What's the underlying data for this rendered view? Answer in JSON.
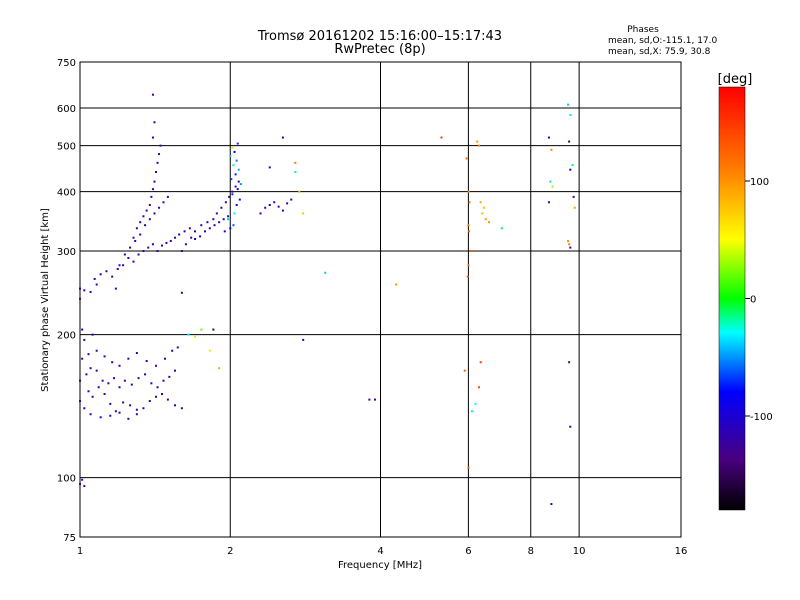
{
  "chart_data": {
    "type": "scatter",
    "title": "Tromsø 20161202 15:16:00–15:17:43",
    "subtitle": "RwPretec (8p)",
    "xlabel": "Frequency [MHz]",
    "ylabel": "Stationary phase Virtual Height [km]",
    "x_scale": "log",
    "y_scale": "log",
    "xlim": [
      1,
      16
    ],
    "ylim": [
      75,
      750
    ],
    "x_ticks": [
      1,
      2,
      4,
      6,
      8,
      10,
      16
    ],
    "x_tick_labels": [
      "1",
      "2",
      "4",
      "6",
      "8",
      "10",
      "16"
    ],
    "y_ticks": [
      75,
      100,
      200,
      300,
      400,
      500,
      600,
      750
    ],
    "y_tick_labels": [
      "75",
      "100",
      "200",
      "300",
      "400",
      "500",
      "600",
      "750"
    ],
    "grid": true,
    "stats": {
      "heading": "Phases",
      "line_o": "mean, sd,O:-115.1, 17.0",
      "line_x": "mean, sd,X: 75.9, 30.8"
    },
    "colorbar": {
      "label": "[deg]",
      "range": [
        -180,
        180
      ],
      "ticks": [
        100,
        0,
        -100
      ],
      "tick_labels": [
        "100",
        "0",
        "-100"
      ]
    },
    "points": [
      [
        1.0,
        97,
        -120
      ],
      [
        1.02,
        96,
        -110
      ],
      [
        1.01,
        99,
        -115
      ],
      [
        1.0,
        145,
        -120
      ],
      [
        1.02,
        140,
        -110
      ],
      [
        1.04,
        152,
        -125
      ],
      [
        1.06,
        148,
        -115
      ],
      [
        1.09,
        155,
        -112
      ],
      [
        1.12,
        150,
        -118
      ],
      [
        1.15,
        143,
        -120
      ],
      [
        1.18,
        138,
        -110
      ],
      [
        1.22,
        144,
        -114
      ],
      [
        1.26,
        142,
        -120
      ],
      [
        1.3,
        139,
        -116
      ],
      [
        1.34,
        140,
        -125
      ],
      [
        1.38,
        145,
        -118
      ],
      [
        1.42,
        148,
        -112
      ],
      [
        1.46,
        150,
        -120
      ],
      [
        1.5,
        146,
        -122
      ],
      [
        1.55,
        142,
        -115
      ],
      [
        1.6,
        140,
        -118
      ],
      [
        1.0,
        160,
        -120
      ],
      [
        1.03,
        165,
        -118
      ],
      [
        1.05,
        170,
        -112
      ],
      [
        1.08,
        168,
        -124
      ],
      [
        1.11,
        160,
        -116
      ],
      [
        1.14,
        158,
        -120
      ],
      [
        1.17,
        162,
        -110
      ],
      [
        1.2,
        155,
        -118
      ],
      [
        1.23,
        160,
        -125
      ],
      [
        1.27,
        157,
        -119
      ],
      [
        1.31,
        162,
        -114
      ],
      [
        1.35,
        165,
        -110
      ],
      [
        1.39,
        158,
        -121
      ],
      [
        1.43,
        155,
        -117
      ],
      [
        1.47,
        160,
        -115
      ],
      [
        1.51,
        163,
        -123
      ],
      [
        1.55,
        168,
        -116
      ],
      [
        1.01,
        178,
        -118
      ],
      [
        1.04,
        182,
        -112
      ],
      [
        1.08,
        185,
        -120
      ],
      [
        1.12,
        180,
        -114
      ],
      [
        1.16,
        175,
        -120
      ],
      [
        1.2,
        172,
        -116
      ],
      [
        1.25,
        178,
        -118
      ],
      [
        1.3,
        183,
        -122
      ],
      [
        1.36,
        176,
        -115
      ],
      [
        1.42,
        172,
        -118
      ],
      [
        1.48,
        178,
        -110
      ],
      [
        1.53,
        185,
        -116
      ],
      [
        1.57,
        188,
        -118
      ],
      [
        1.02,
        195,
        -110
      ],
      [
        1.06,
        200,
        -115
      ],
      [
        1.01,
        205,
        -118
      ],
      [
        1.05,
        136,
        -120
      ],
      [
        1.1,
        134,
        -116
      ],
      [
        1.15,
        135,
        -118
      ],
      [
        1.2,
        137,
        -112
      ],
      [
        1.25,
        133,
        -120
      ],
      [
        1.3,
        136,
        -118
      ],
      [
        1.0,
        250,
        -115
      ],
      [
        1.02,
        248,
        -120
      ],
      [
        1.05,
        246,
        -110
      ],
      [
        1.07,
        262,
        -114
      ],
      [
        1.1,
        268,
        -112
      ],
      [
        1.13,
        272,
        -118
      ],
      [
        1.16,
        265,
        -116
      ],
      [
        1.19,
        275,
        -120
      ],
      [
        1.22,
        280,
        -114
      ],
      [
        1.25,
        290,
        -116
      ],
      [
        1.28,
        285,
        -118
      ],
      [
        1.31,
        295,
        -112
      ],
      [
        1.34,
        300,
        -120
      ],
      [
        1.37,
        305,
        -118
      ],
      [
        1.4,
        310,
        -116
      ],
      [
        1.43,
        300,
        -110
      ],
      [
        1.46,
        308,
        -122
      ],
      [
        1.49,
        312,
        -118
      ],
      [
        1.52,
        315,
        -114
      ],
      [
        1.55,
        320,
        -116
      ],
      [
        1.58,
        325,
        -120
      ],
      [
        1.62,
        330,
        -112
      ],
      [
        1.66,
        335,
        -118
      ],
      [
        1.7,
        318,
        -114
      ],
      [
        1.74,
        322,
        -116
      ],
      [
        1.78,
        330,
        -118
      ],
      [
        1.82,
        335,
        -120
      ],
      [
        1.86,
        340,
        -112
      ],
      [
        1.9,
        345,
        -116
      ],
      [
        1.94,
        350,
        -118
      ],
      [
        1.98,
        355,
        -114
      ],
      [
        1.28,
        320,
        -118
      ],
      [
        1.3,
        335,
        -114
      ],
      [
        1.32,
        345,
        -116
      ],
      [
        1.34,
        355,
        -120
      ],
      [
        1.36,
        365,
        -112
      ],
      [
        1.38,
        375,
        -118
      ],
      [
        1.39,
        390,
        -116
      ],
      [
        1.4,
        405,
        -114
      ],
      [
        1.41,
        420,
        -120
      ],
      [
        1.42,
        440,
        -118
      ],
      [
        1.43,
        460,
        -112
      ],
      [
        1.44,
        480,
        -116
      ],
      [
        1.45,
        500,
        -118
      ],
      [
        1.4,
        520,
        -110
      ],
      [
        1.41,
        560,
        -115
      ],
      [
        1.4,
        640,
        -125
      ],
      [
        1.2,
        280,
        -116
      ],
      [
        1.23,
        295,
        -118
      ],
      [
        1.26,
        305,
        -114
      ],
      [
        1.29,
        315,
        -120
      ],
      [
        1.32,
        325,
        -116
      ],
      [
        1.35,
        340,
        -118
      ],
      [
        1.38,
        350,
        -112
      ],
      [
        1.41,
        360,
        -116
      ],
      [
        1.44,
        370,
        -120
      ],
      [
        1.47,
        380,
        -114
      ],
      [
        1.5,
        390,
        -118
      ],
      [
        1.6,
        300,
        -118
      ],
      [
        1.63,
        310,
        -116
      ],
      [
        1.67,
        320,
        -114
      ],
      [
        1.7,
        330,
        -118
      ],
      [
        1.75,
        340,
        -116
      ],
      [
        1.8,
        345,
        -112
      ],
      [
        1.85,
        350,
        -118
      ],
      [
        1.88,
        360,
        -116
      ],
      [
        1.92,
        370,
        -114
      ],
      [
        1.96,
        380,
        -118
      ],
      [
        1.99,
        390,
        -116
      ],
      [
        2.02,
        400,
        -120
      ],
      [
        2.05,
        410,
        -112
      ],
      [
        2.08,
        420,
        -118
      ],
      [
        1.95,
        330,
        -110
      ],
      [
        2.0,
        335,
        -80
      ],
      [
        2.03,
        340,
        -60
      ],
      [
        1.98,
        350,
        -40
      ],
      [
        2.04,
        360,
        -30
      ],
      [
        2.06,
        375,
        -100
      ],
      [
        2.09,
        385,
        -95
      ],
      [
        2.02,
        395,
        -70
      ],
      [
        2.07,
        405,
        -85
      ],
      [
        2.1,
        415,
        -50
      ],
      [
        2.01,
        425,
        -65
      ],
      [
        2.05,
        435,
        -75
      ],
      [
        2.08,
        445,
        -45
      ],
      [
        2.03,
        455,
        -20
      ],
      [
        2.06,
        465,
        -55
      ],
      [
        2.0,
        475,
        -35
      ],
      [
        2.04,
        485,
        -90
      ],
      [
        2.02,
        495,
        40
      ],
      [
        2.07,
        505,
        -70
      ],
      [
        2.3,
        360,
        -118
      ],
      [
        2.35,
        370,
        -116
      ],
      [
        2.4,
        375,
        -110
      ],
      [
        2.45,
        380,
        -114
      ],
      [
        2.5,
        372,
        -118
      ],
      [
        2.55,
        365,
        -112
      ],
      [
        2.6,
        378,
        -120
      ],
      [
        2.65,
        385,
        -116
      ],
      [
        2.4,
        450,
        -120
      ],
      [
        2.55,
        520,
        -110
      ],
      [
        2.7,
        460,
        110
      ],
      [
        2.75,
        400,
        90
      ],
      [
        2.8,
        360,
        80
      ],
      [
        2.7,
        440,
        -20
      ],
      [
        1.6,
        245,
        -140
      ],
      [
        1.65,
        200,
        -30
      ],
      [
        1.7,
        198,
        40
      ],
      [
        1.75,
        205,
        20
      ],
      [
        1.82,
        185,
        60
      ],
      [
        1.9,
        170,
        90
      ],
      [
        1.85,
        205,
        -150
      ],
      [
        1.0,
        238,
        -120
      ],
      [
        1.08,
        255,
        -115
      ],
      [
        1.18,
        250,
        -118
      ],
      [
        2.8,
        195,
        -100
      ],
      [
        3.1,
        270,
        -40
      ],
      [
        3.8,
        146,
        -120
      ],
      [
        3.9,
        146,
        -118
      ],
      [
        4.3,
        255,
        100
      ],
      [
        5.3,
        520,
        150
      ],
      [
        5.95,
        470,
        120
      ],
      [
        6.0,
        340,
        110
      ],
      [
        6.02,
        330,
        120
      ],
      [
        6.0,
        280,
        115
      ],
      [
        5.98,
        265,
        125
      ],
      [
        6.05,
        300,
        130
      ],
      [
        6.01,
        400,
        105
      ],
      [
        6.03,
        380,
        118
      ],
      [
        6.0,
        105,
        125
      ],
      [
        5.9,
        168,
        130
      ],
      [
        6.1,
        138,
        -20
      ],
      [
        6.2,
        143,
        -30
      ],
      [
        6.3,
        155,
        140
      ],
      [
        6.35,
        175,
        145
      ],
      [
        6.25,
        510,
        100
      ],
      [
        6.3,
        500,
        110
      ],
      [
        6.35,
        380,
        90
      ],
      [
        6.4,
        360,
        85
      ],
      [
        6.45,
        370,
        80
      ],
      [
        6.5,
        350,
        95
      ],
      [
        6.6,
        345,
        100
      ],
      [
        7.0,
        335,
        -10
      ],
      [
        8.7,
        520,
        -110
      ],
      [
        8.8,
        490,
        105
      ],
      [
        8.75,
        420,
        -20
      ],
      [
        8.85,
        410,
        30
      ],
      [
        8.7,
        380,
        -115
      ],
      [
        8.8,
        88,
        -140
      ],
      [
        9.5,
        610,
        -40
      ],
      [
        9.6,
        580,
        -30
      ],
      [
        9.55,
        510,
        -150
      ],
      [
        9.6,
        445,
        -100
      ],
      [
        9.7,
        455,
        -10
      ],
      [
        9.75,
        390,
        -130
      ],
      [
        9.8,
        370,
        95
      ],
      [
        9.5,
        315,
        100
      ],
      [
        9.55,
        310,
        110
      ],
      [
        9.6,
        305,
        -120
      ],
      [
        9.55,
        175,
        -140
      ],
      [
        9.6,
        128,
        -115
      ]
    ]
  }
}
